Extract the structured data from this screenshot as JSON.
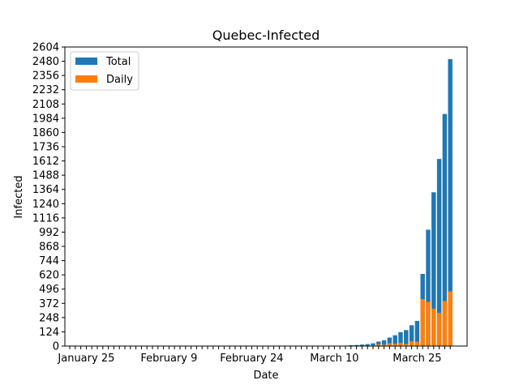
{
  "chart_data": {
    "type": "bar",
    "title": "Quebec-Infected",
    "xlabel": "Date",
    "ylabel": "Infected",
    "ylim": [
      0,
      2604
    ],
    "yticks": [
      0,
      124,
      248,
      372,
      496,
      620,
      744,
      868,
      992,
      1116,
      1240,
      1364,
      1488,
      1612,
      1736,
      1860,
      1984,
      2108,
      2232,
      2356,
      2480,
      2604
    ],
    "x_start": "January 22",
    "x_end": "March 27",
    "xtick_labels": [
      {
        "date": "January 25",
        "label": "January 25"
      },
      {
        "date": "February 9",
        "label": "February 9"
      },
      {
        "date": "February 24",
        "label": "February 24"
      },
      {
        "date": "March 10",
        "label": "March 10"
      },
      {
        "date": "March 25",
        "label": "March 25"
      }
    ],
    "legend": {
      "position": "top-left",
      "entries": [
        "Total",
        "Daily"
      ]
    },
    "grid": false,
    "series": [
      {
        "name": "Total",
        "color": "#1f77b4",
        "values": [
          0,
          0,
          0,
          0,
          0,
          0,
          0,
          0,
          0,
          0,
          0,
          0,
          0,
          0,
          0,
          0,
          0,
          0,
          0,
          0,
          0,
          0,
          0,
          0,
          0,
          0,
          0,
          0,
          0,
          0,
          0,
          0,
          0,
          0,
          0,
          0,
          0,
          0,
          0,
          0,
          0,
          0,
          0,
          0,
          0,
          0,
          0,
          1,
          2,
          3,
          4,
          7,
          9,
          13,
          17,
          24,
          39,
          50,
          74,
          94,
          121,
          139,
          181,
          219,
          628,
          1013,
          1339,
          1629,
          2021,
          2498
        ]
      },
      {
        "name": "Daily",
        "color": "#ff7f0e",
        "values": [
          0,
          0,
          0,
          0,
          0,
          0,
          0,
          0,
          0,
          0,
          0,
          0,
          0,
          0,
          0,
          0,
          0,
          0,
          0,
          0,
          0,
          0,
          0,
          0,
          0,
          0,
          0,
          0,
          0,
          0,
          0,
          0,
          0,
          0,
          0,
          0,
          0,
          0,
          0,
          0,
          0,
          0,
          0,
          0,
          0,
          0,
          0,
          1,
          1,
          1,
          1,
          3,
          2,
          4,
          4,
          7,
          15,
          11,
          24,
          20,
          27,
          18,
          42,
          38,
          409,
          385,
          326,
          290,
          392,
          477
        ]
      }
    ]
  }
}
